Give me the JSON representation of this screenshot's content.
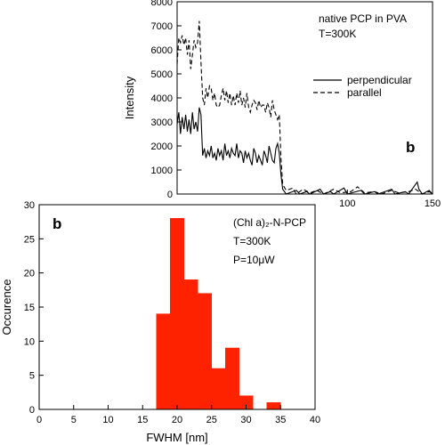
{
  "chart_data": [
    {
      "type": "line",
      "panel_label": "b",
      "annotation_lines": [
        "native PCP in PVA",
        "T=300K"
      ],
      "xlabel": "",
      "ylabel": "Intensity",
      "xlim": [
        0,
        150
      ],
      "ylim": [
        0,
        8000
      ],
      "x_ticks_visible": [
        100,
        150
      ],
      "x_tick_labels": [
        "100",
        "150"
      ],
      "y_ticks": [
        0,
        1000,
        2000,
        3000,
        4000,
        5000,
        6000,
        7000,
        8000
      ],
      "y_tick_labels": [
        "0",
        "1000",
        "2000",
        "3000",
        "4000",
        "5000",
        "6000",
        "7000",
        "8000"
      ],
      "legend_position": "right",
      "series": [
        {
          "name": "perpendicular",
          "style": "solid",
          "points": [
            [
              0,
              2900
            ],
            [
              1,
              3400
            ],
            [
              2,
              2500
            ],
            [
              3,
              3200
            ],
            [
              4,
              2700
            ],
            [
              5,
              3300
            ],
            [
              6,
              2600
            ],
            [
              7,
              3100
            ],
            [
              8,
              2500
            ],
            [
              9,
              3400
            ],
            [
              10,
              2700
            ],
            [
              11,
              3000
            ],
            [
              12,
              2600
            ],
            [
              13,
              3600
            ],
            [
              14,
              3300
            ],
            [
              15,
              1600
            ],
            [
              16,
              1900
            ],
            [
              17,
              1500
            ],
            [
              18,
              1800
            ],
            [
              19,
              1600
            ],
            [
              20,
              2000
            ],
            [
              21,
              1500
            ],
            [
              22,
              1700
            ],
            [
              23,
              1400
            ],
            [
              24,
              1900
            ],
            [
              25,
              1600
            ],
            [
              26,
              1800
            ],
            [
              27,
              1400
            ],
            [
              28,
              2100
            ],
            [
              29,
              1600
            ],
            [
              30,
              1800
            ],
            [
              31,
              1500
            ],
            [
              32,
              1900
            ],
            [
              33,
              1700
            ],
            [
              34,
              1600
            ],
            [
              35,
              2100
            ],
            [
              36,
              1500
            ],
            [
              37,
              1800
            ],
            [
              38,
              1700
            ],
            [
              39,
              1300
            ],
            [
              40,
              1800
            ],
            [
              41,
              1500
            ],
            [
              42,
              1700
            ],
            [
              43,
              1400
            ],
            [
              44,
              1200
            ],
            [
              45,
              1900
            ],
            [
              46,
              1700
            ],
            [
              47,
              1300
            ],
            [
              48,
              1600
            ],
            [
              49,
              1400
            ],
            [
              50,
              1200
            ],
            [
              51,
              1800
            ],
            [
              52,
              1600
            ],
            [
              53,
              1300
            ],
            [
              54,
              2000
            ],
            [
              55,
              1700
            ],
            [
              56,
              1400
            ],
            [
              57,
              1300
            ],
            [
              58,
              1900
            ],
            [
              59,
              2100
            ],
            [
              60,
              1700
            ],
            [
              61,
              800
            ],
            [
              62,
              200
            ],
            [
              64,
              0
            ],
            [
              70,
              150
            ],
            [
              72,
              0
            ],
            [
              76,
              100
            ],
            [
              78,
              0
            ],
            [
              84,
              200
            ],
            [
              86,
              0
            ],
            [
              90,
              100
            ],
            [
              92,
              0
            ],
            [
              98,
              250
            ],
            [
              100,
              0
            ],
            [
              108,
              150
            ],
            [
              110,
              0
            ],
            [
              116,
              100
            ],
            [
              118,
              0
            ],
            [
              126,
              200
            ],
            [
              128,
              0
            ],
            [
              134,
              100
            ],
            [
              136,
              0
            ],
            [
              141,
              500
            ],
            [
              142,
              200
            ],
            [
              144,
              0
            ],
            [
              148,
              150
            ],
            [
              150,
              0
            ]
          ]
        },
        {
          "name": "parallel",
          "style": "dashed",
          "points": [
            [
              0,
              5400
            ],
            [
              1,
              6500
            ],
            [
              2,
              6300
            ],
            [
              3,
              6600
            ],
            [
              4,
              6200
            ],
            [
              5,
              6500
            ],
            [
              6,
              5800
            ],
            [
              7,
              6400
            ],
            [
              8,
              5200
            ],
            [
              9,
              5800
            ],
            [
              10,
              6400
            ],
            [
              11,
              6100
            ],
            [
              12,
              6300
            ],
            [
              13,
              7200
            ],
            [
              14,
              5500
            ],
            [
              15,
              4000
            ],
            [
              16,
              3700
            ],
            [
              17,
              4400
            ],
            [
              18,
              4000
            ],
            [
              19,
              4500
            ],
            [
              20,
              4400
            ],
            [
              21,
              3900
            ],
            [
              22,
              4200
            ],
            [
              23,
              3700
            ],
            [
              24,
              3600
            ],
            [
              25,
              3700
            ],
            [
              26,
              4100
            ],
            [
              27,
              4400
            ],
            [
              28,
              3900
            ],
            [
              29,
              4300
            ],
            [
              30,
              3800
            ],
            [
              31,
              4200
            ],
            [
              32,
              3700
            ],
            [
              33,
              4100
            ],
            [
              34,
              3700
            ],
            [
              35,
              4200
            ],
            [
              36,
              3800
            ],
            [
              37,
              4300
            ],
            [
              38,
              3700
            ],
            [
              39,
              4000
            ],
            [
              40,
              3600
            ],
            [
              41,
              4200
            ],
            [
              42,
              3600
            ],
            [
              43,
              3400
            ],
            [
              44,
              3700
            ],
            [
              45,
              3900
            ],
            [
              46,
              3800
            ],
            [
              47,
              3500
            ],
            [
              48,
              3900
            ],
            [
              49,
              3600
            ],
            [
              50,
              3700
            ],
            [
              51,
              3700
            ],
            [
              52,
              3400
            ],
            [
              53,
              3800
            ],
            [
              54,
              3600
            ],
            [
              55,
              3200
            ],
            [
              56,
              3900
            ],
            [
              57,
              3500
            ],
            [
              58,
              3300
            ],
            [
              59,
              3100
            ],
            [
              60,
              3300
            ],
            [
              61,
              1500
            ],
            [
              62,
              400
            ],
            [
              64,
              150
            ],
            [
              68,
              250
            ],
            [
              70,
              0
            ],
            [
              74,
              200
            ],
            [
              78,
              50
            ],
            [
              82,
              150
            ],
            [
              86,
              0
            ],
            [
              92,
              200
            ],
            [
              96,
              50
            ],
            [
              102,
              100
            ],
            [
              106,
              300
            ],
            [
              110,
              50
            ],
            [
              116,
              100
            ],
            [
              120,
              0
            ],
            [
              126,
              150
            ],
            [
              130,
              50
            ],
            [
              136,
              100
            ],
            [
              140,
              200
            ],
            [
              144,
              0
            ],
            [
              148,
              100
            ],
            [
              150,
              0
            ]
          ]
        }
      ]
    },
    {
      "type": "bar",
      "panel_label": "b",
      "annotation_lines": [
        "(Chl a)₂-N-PCP",
        "T=300K",
        "P=10μW"
      ],
      "xlabel": "FWHM [nm]",
      "ylabel": "Occurence",
      "xlim": [
        0,
        40
      ],
      "ylim": [
        0,
        30
      ],
      "x_ticks": [
        0,
        5,
        10,
        15,
        20,
        25,
        30,
        35,
        40
      ],
      "x_tick_labels": [
        "0",
        "5",
        "10",
        "15",
        "20",
        "25",
        "30",
        "35",
        "40"
      ],
      "y_ticks": [
        0,
        5,
        10,
        15,
        20,
        25,
        30
      ],
      "y_tick_labels": [
        "0",
        "5",
        "10",
        "15",
        "20",
        "25",
        "30"
      ],
      "bar_color": "#ff2200",
      "bins": [
        {
          "x0": 17,
          "x1": 19,
          "value": 14
        },
        {
          "x0": 19,
          "x1": 21,
          "value": 28
        },
        {
          "x0": 21,
          "x1": 23,
          "value": 19
        },
        {
          "x0": 23,
          "x1": 25,
          "value": 17
        },
        {
          "x0": 25,
          "x1": 27,
          "value": 6
        },
        {
          "x0": 27,
          "x1": 29,
          "value": 9
        },
        {
          "x0": 29,
          "x1": 31,
          "value": 2
        },
        {
          "x0": 33,
          "x1": 35,
          "value": 1
        }
      ]
    }
  ]
}
